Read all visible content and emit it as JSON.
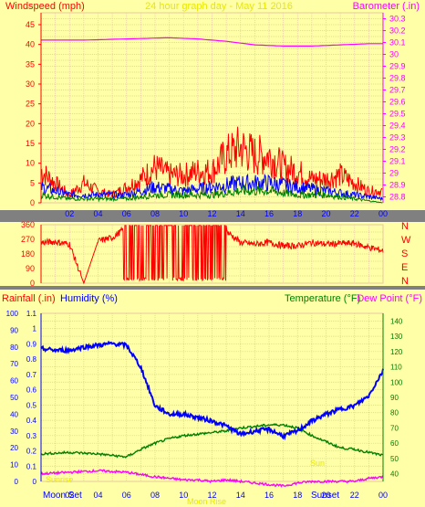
{
  "panel1": {
    "title": "24 hour graph day - May 11 2016",
    "left_label": "Windspeed (mph)",
    "right_label": "Barometer (.in)",
    "left_ticks": [
      "0",
      "5",
      "10",
      "15",
      "20",
      "25",
      "30",
      "35",
      "40",
      "45"
    ],
    "right_ticks": [
      "28.8",
      "28.9",
      "29",
      "29.1",
      "29.2",
      "29.3",
      "29.4",
      "29.5",
      "29.6",
      "29.7",
      "29.8",
      "29.9",
      "30",
      "30.1",
      "30.2",
      "30.3"
    ],
    "x_ticks": [
      "02",
      "04",
      "06",
      "08",
      "10",
      "12",
      "14",
      "16",
      "18",
      "20",
      "22",
      "00"
    ]
  },
  "panel2": {
    "left_ticks": [
      "0",
      "90",
      "180",
      "270",
      "360"
    ],
    "compass": [
      "N",
      "W",
      "S",
      "E",
      "N"
    ]
  },
  "panel3": {
    "label_rain": "Rainfall (.in)",
    "label_humidity": "Humidity (%)",
    "label_temperature": "Temperature (°F)",
    "label_dewpoint": "Dew Point (°F)",
    "humidity_ticks": [
      "0",
      "10",
      "20",
      "30",
      "40",
      "50",
      "60",
      "70",
      "80",
      "90",
      "100"
    ],
    "rain_ticks": [
      "0",
      "0.1",
      "0.2",
      "0.3",
      "0.4",
      "0.5",
      "0.6",
      "0.7",
      "0.8",
      "0.9",
      "1",
      "1.1"
    ],
    "temp_ticks": [
      "40",
      "50",
      "60",
      "70",
      "80",
      "90",
      "100",
      "110",
      "120",
      "130",
      "140"
    ],
    "x_ticks": [
      "02",
      "04",
      "06",
      "08",
      "10",
      "12",
      "14",
      "16",
      "18",
      "20",
      "22",
      "00"
    ],
    "moon_set": "Moon Set",
    "sunset": "Sunset",
    "moon_rise": "Moon Rise",
    "sunrise": "Sunrise",
    "sun": "Sun"
  },
  "colors": {
    "panel_bg": "#ffffa8",
    "grid": "#e8c8a0",
    "title": "#e8e800",
    "barometer": "#ff00ff",
    "wind_gust": "#ff0000",
    "wind_avg": "#0000ff",
    "wind_low": "#008000",
    "direction": "#ff0000",
    "humidity": "#0000ff",
    "temperature": "#008000",
    "dewpoint": "#ff00ff",
    "green_label": "#008000",
    "red_label": "#ff0000"
  },
  "chart_data": [
    {
      "type": "line",
      "name": "wind and barometer",
      "xlim": [
        0,
        24
      ],
      "ylim_left": [
        0,
        48
      ],
      "ylim_right": [
        28.75,
        30.35
      ],
      "barometer": {
        "x": [
          0,
          3,
          6,
          9,
          11,
          13,
          15,
          17,
          19,
          21,
          23,
          24
        ],
        "y": [
          30.12,
          30.12,
          30.13,
          30.14,
          30.13,
          30.11,
          30.08,
          30.07,
          30.07,
          30.08,
          30.09,
          30.09
        ]
      },
      "gust": {
        "x": [
          0,
          1,
          2,
          3,
          4,
          5,
          6,
          7,
          8,
          9,
          10,
          11,
          12,
          13,
          14,
          15,
          16,
          17,
          18,
          19,
          20,
          21,
          22,
          23
        ],
        "y": [
          8,
          5,
          2,
          5,
          3,
          2,
          4,
          6,
          9,
          7,
          7,
          8,
          8,
          12,
          14,
          12,
          12,
          9,
          8,
          6,
          6,
          7,
          5,
          3
        ]
      },
      "average": {
        "x": [
          0,
          2,
          4,
          6,
          8,
          10,
          12,
          14,
          16,
          18,
          20,
          22,
          24
        ],
        "y": [
          4,
          2,
          2,
          2,
          4,
          3,
          4,
          5,
          5,
          4,
          3,
          2,
          1
        ]
      },
      "low": {
        "x": [
          0,
          2,
          4,
          6,
          8,
          10,
          12,
          14,
          16,
          18,
          20,
          22,
          24
        ],
        "y": [
          2,
          1,
          1,
          1,
          2,
          2,
          2,
          3,
          3,
          2,
          2,
          1,
          0
        ]
      }
    },
    {
      "type": "line",
      "name": "wind direction",
      "xlim": [
        0,
        24
      ],
      "ylim": [
        0,
        360
      ],
      "x": [
        0,
        1,
        2,
        3,
        4,
        5,
        6,
        8,
        10,
        12,
        13,
        14,
        15,
        16,
        17,
        18,
        19,
        20,
        21,
        22,
        23,
        24
      ],
      "y": [
        250,
        255,
        240,
        0,
        260,
        280,
        345,
        355,
        350,
        355,
        320,
        250,
        240,
        250,
        230,
        230,
        250,
        240,
        245,
        245,
        220,
        200
      ]
    },
    {
      "type": "line",
      "name": "humidity temperature dew point",
      "xlim": [
        0,
        24
      ],
      "humidity_ylim": [
        0,
        100
      ],
      "temp_ylim": [
        35,
        145
      ],
      "humidity": {
        "x": [
          0,
          1,
          2,
          3,
          4,
          5,
          6,
          7,
          8,
          9,
          10,
          11,
          12,
          13,
          14,
          15,
          16,
          17,
          18,
          19,
          20,
          21,
          22,
          23,
          24
        ],
        "y": [
          79,
          78,
          78,
          80,
          81,
          82,
          81,
          68,
          45,
          40,
          40,
          38,
          36,
          33,
          28,
          30,
          31,
          27,
          30,
          36,
          40,
          43,
          45,
          51,
          66
        ]
      },
      "temperature": {
        "x": [
          0,
          2,
          4,
          6,
          7,
          8,
          9,
          10,
          11,
          12,
          13,
          14,
          15,
          16,
          17,
          18,
          19,
          20,
          21,
          22,
          23,
          24
        ],
        "y": [
          53,
          54,
          53,
          51,
          56,
          60,
          63,
          65,
          66,
          67,
          68,
          70,
          71,
          72,
          72,
          70,
          65,
          61,
          57,
          56,
          54,
          52
        ]
      },
      "dewpoint": {
        "x": [
          0,
          2,
          4,
          6,
          8,
          10,
          11,
          12,
          13,
          14,
          15,
          16,
          17,
          18,
          19,
          20,
          21,
          22,
          23,
          24
        ],
        "y": [
          40,
          41,
          42,
          41,
          38,
          36,
          36,
          35,
          36,
          35,
          34,
          33,
          32,
          34,
          35,
          35,
          35,
          35,
          37,
          38
        ]
      }
    }
  ]
}
